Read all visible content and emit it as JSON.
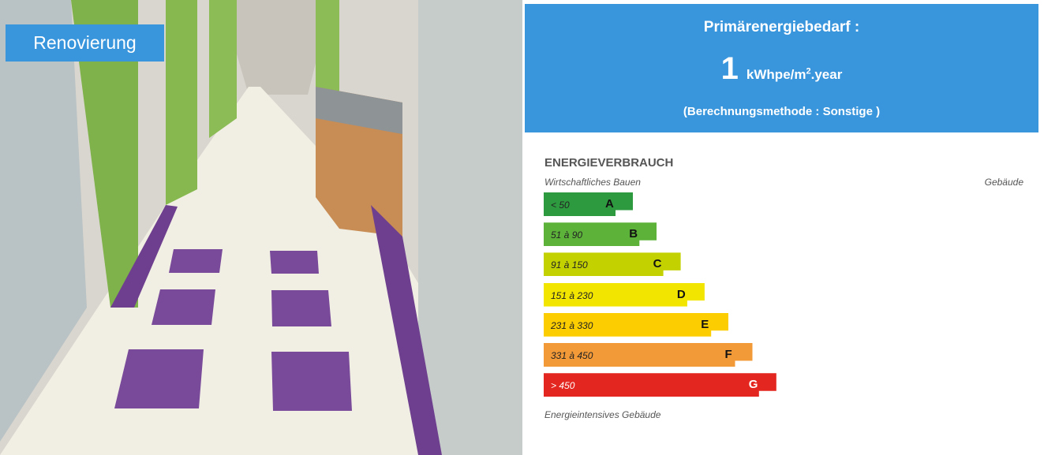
{
  "photo": {
    "badge": "Renovierung"
  },
  "header": {
    "title": "Primärenergiebedarf :",
    "value": "1",
    "unit": {
      "base": "kWhpe/m",
      "sup": "2",
      "tail": ".year"
    },
    "method": "(Berechnungsmethode : Sonstige )"
  },
  "scale": {
    "title": "ENERGIEVERBRAUCH",
    "top_left": "Wirtschaftliches Bauen",
    "top_right": "Gebäude",
    "bottom": "Energieintensives Gebäude",
    "classes": [
      {
        "range": "< 50",
        "letter": "A"
      },
      {
        "range": "51 à 90",
        "letter": "B"
      },
      {
        "range": "91 à 150",
        "letter": "C"
      },
      {
        "range": "151 à 230",
        "letter": "D"
      },
      {
        "range": "231 à 330",
        "letter": "E"
      },
      {
        "range": "331 à 450",
        "letter": "F"
      },
      {
        "range": "> 450",
        "letter": "G"
      }
    ]
  }
}
